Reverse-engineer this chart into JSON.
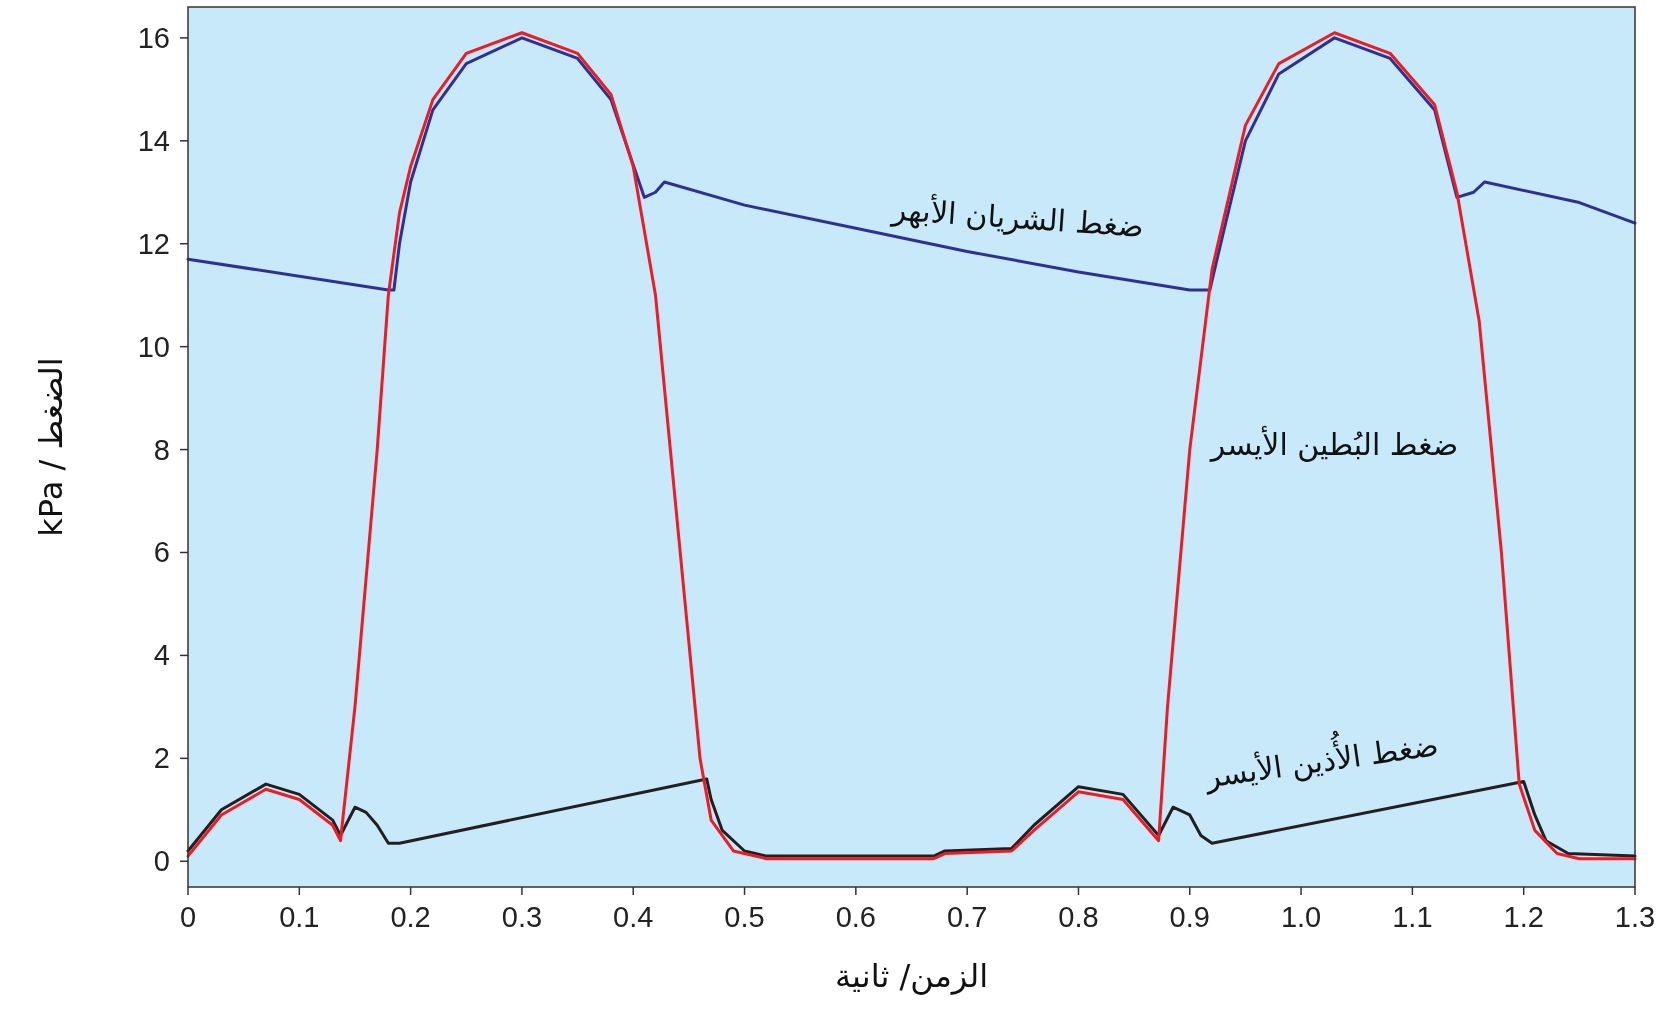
{
  "chart_data": {
    "type": "line",
    "xlabel": "الزمن/ ثانية",
    "ylabel": "الضغط / kPa",
    "xlim": [
      0,
      1.3
    ],
    "ylim": [
      -0.5,
      16.6
    ],
    "xticks": [
      0,
      0.1,
      0.2,
      0.3,
      0.4,
      0.5,
      0.6,
      0.7,
      0.8,
      0.9,
      {
        "value": 1,
        "label": "1.0"
      },
      1.1,
      1.2,
      1.3
    ],
    "yticks": [
      0,
      2,
      4,
      6,
      8,
      10,
      12,
      14,
      16
    ],
    "series": [
      {
        "name": "ضغط الأُذين الأيسر",
        "color": "#231f20",
        "x": [
          0,
          0.03,
          0.07,
          0.1,
          0.13,
          0.137,
          0.15,
          0.16,
          0.17,
          0.18,
          0.19,
          0.466,
          0.47,
          0.48,
          0.5,
          0.52,
          0.67,
          0.68,
          0.74,
          0.76,
          0.8,
          0.84,
          0.872,
          0.885,
          0.9,
          0.91,
          0.92,
          1.2,
          1.21,
          1.22,
          1.24,
          1.3
        ],
        "values": [
          0.2,
          1.0,
          1.5,
          1.3,
          0.8,
          0.5,
          1.05,
          0.95,
          0.7,
          0.35,
          0.35,
          1.6,
          1.2,
          0.6,
          0.2,
          0.1,
          0.1,
          0.2,
          0.25,
          0.7,
          1.45,
          1.3,
          0.5,
          1.05,
          0.9,
          0.5,
          0.35,
          1.55,
          0.9,
          0.4,
          0.15,
          0.1
        ]
      },
      {
        "name": "ضغط الشريان الأبهر",
        "color": "#2e3192",
        "x": [
          0,
          0.18,
          0.185,
          0.19,
          0.2,
          0.22,
          0.25,
          0.3,
          0.35,
          0.38,
          0.41,
          0.42,
          0.428,
          0.5,
          0.6,
          0.7,
          0.8,
          0.9,
          0.918,
          0.93,
          0.95,
          0.98,
          1.03,
          1.08,
          1.12,
          1.14,
          1.155,
          1.165,
          1.25,
          1.3
        ],
        "values": [
          11.7,
          11.1,
          11.1,
          12.0,
          13.2,
          14.6,
          15.5,
          16.0,
          15.6,
          14.8,
          12.9,
          13.0,
          13.2,
          12.75,
          12.3,
          11.85,
          11.45,
          11.1,
          11.1,
          12.2,
          14.0,
          15.3,
          16.0,
          15.6,
          14.6,
          12.9,
          13.0,
          13.2,
          12.8,
          12.4
        ]
      },
      {
        "name": "ضغط البُطين الأيسر",
        "color": "#ed1c24",
        "x": [
          0,
          0.03,
          0.07,
          0.1,
          0.13,
          0.137,
          0.15,
          0.17,
          0.18,
          0.19,
          0.2,
          0.22,
          0.25,
          0.3,
          0.35,
          0.38,
          0.4,
          0.42,
          0.44,
          0.46,
          0.47,
          0.49,
          0.52,
          0.67,
          0.68,
          0.74,
          0.76,
          0.8,
          0.84,
          0.872,
          0.88,
          0.9,
          0.92,
          0.95,
          0.98,
          1.03,
          1.08,
          1.12,
          1.14,
          1.16,
          1.18,
          1.196,
          1.21,
          1.23,
          1.25,
          1.3
        ],
        "values": [
          0.1,
          0.9,
          1.4,
          1.2,
          0.7,
          0.4,
          3.0,
          8.0,
          11.0,
          12.6,
          13.5,
          14.8,
          15.7,
          16.1,
          15.7,
          14.9,
          13.5,
          11.0,
          6.5,
          2.0,
          0.8,
          0.2,
          0.05,
          0.05,
          0.15,
          0.2,
          0.6,
          1.35,
          1.2,
          0.4,
          3.0,
          8.0,
          11.5,
          14.3,
          15.5,
          16.1,
          15.7,
          14.7,
          13.0,
          10.5,
          6.0,
          1.5,
          0.6,
          0.15,
          0.05,
          0.05
        ]
      }
    ]
  }
}
